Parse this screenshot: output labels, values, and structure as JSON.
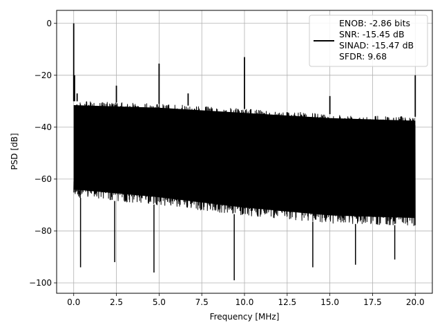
{
  "chart_data": {
    "type": "line",
    "title": "",
    "xlabel": "Frequency [MHz]",
    "ylabel": "PSD [dB]",
    "xlim": [
      -1.0,
      21.0
    ],
    "ylim": [
      -104.0,
      5.0
    ],
    "grid": true,
    "legend_position": "top-right",
    "xticks": [
      0.0,
      2.5,
      5.0,
      7.5,
      10.0,
      12.5,
      15.0,
      17.5,
      20.0
    ],
    "xtick_labels": [
      "0.0",
      "2.5",
      "5.0",
      "7.5",
      "10.0",
      "12.5",
      "15.0",
      "17.5",
      "20.0"
    ],
    "yticks": [
      0,
      -20,
      -40,
      -60,
      -80,
      -100
    ],
    "ytick_labels": [
      "0",
      "−20",
      "−40",
      "−60",
      "−80",
      "−100"
    ],
    "series": [
      {
        "name": "ENOB: -2.86 bits\nSNR: -15.45 dB\nSINAD: -15.47 dB\nSFDR: 9.68",
        "color": "#000000",
        "noise_floor": {
          "x": [
            0.0,
            5.0,
            10.0,
            15.0,
            20.0
          ],
          "upper_db": [
            -30.0,
            -31.0,
            -33.0,
            -35.0,
            -36.0
          ],
          "lower_db": [
            -67.0,
            -70.0,
            -74.0,
            -77.0,
            -78.0
          ]
        },
        "spikes": [
          {
            "x": 0.0,
            "y": 0.0
          },
          {
            "x": 0.05,
            "y": -20.0
          },
          {
            "x": 0.2,
            "y": -27.0
          },
          {
            "x": 2.5,
            "y": -24.0
          },
          {
            "x": 5.0,
            "y": -15.5
          },
          {
            "x": 6.7,
            "y": -27.0
          },
          {
            "x": 10.0,
            "y": -13.0
          },
          {
            "x": 15.0,
            "y": -28.0
          },
          {
            "x": 20.0,
            "y": -20.0
          }
        ],
        "dips": [
          {
            "x": 0.4,
            "y": -94.0
          },
          {
            "x": 2.4,
            "y": -92.0
          },
          {
            "x": 4.7,
            "y": -96.0
          },
          {
            "x": 9.4,
            "y": -99.0
          },
          {
            "x": 14.0,
            "y": -94.0
          },
          {
            "x": 16.5,
            "y": -93.0
          },
          {
            "x": 18.8,
            "y": -91.0
          }
        ]
      }
    ]
  }
}
